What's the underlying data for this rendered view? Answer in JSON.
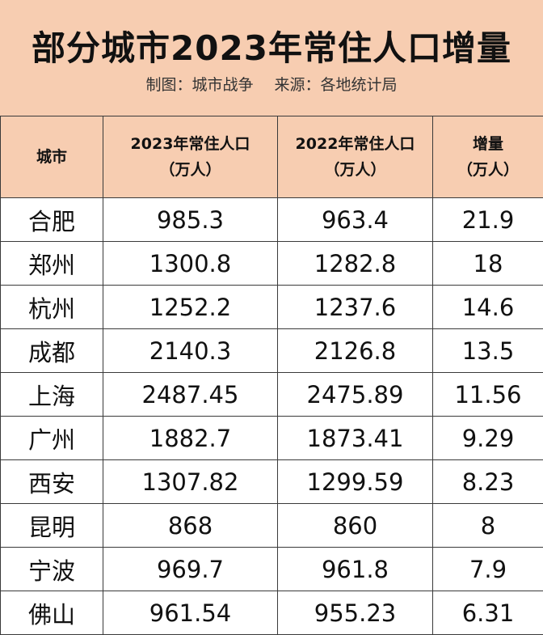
{
  "title": "部分城市2023年常住人口增量",
  "subtitle": {
    "maker": "制图：城市战争",
    "source": "来源：各地统计局"
  },
  "columns": [
    {
      "line1": "城市",
      "line2": ""
    },
    {
      "line1": "2023年常住人口",
      "line2": "（万人）"
    },
    {
      "line1": "2022年常住人口",
      "line2": "（万人）"
    },
    {
      "line1": "增量",
      "line2": "（万人）"
    }
  ],
  "rows": [
    [
      "合肥",
      "985.3",
      "963.4",
      "21.9"
    ],
    [
      "郑州",
      "1300.8",
      "1282.8",
      "18"
    ],
    [
      "杭州",
      "1252.2",
      "1237.6",
      "14.6"
    ],
    [
      "成都",
      "2140.3",
      "2126.8",
      "13.5"
    ],
    [
      "上海",
      "2487.45",
      "2475.89",
      "11.56"
    ],
    [
      "广州",
      "1882.7",
      "1873.41",
      "9.29"
    ],
    [
      "西安",
      "1307.82",
      "1299.59",
      "8.23"
    ],
    [
      "昆明",
      "868",
      "860",
      "8"
    ],
    [
      "宁波",
      "969.7",
      "961.8",
      "7.9"
    ],
    [
      "佛山",
      "961.54",
      "955.23",
      "6.31"
    ]
  ],
  "colors": {
    "header_bg": "#f7cdb1",
    "border": "#3a3a3a"
  }
}
